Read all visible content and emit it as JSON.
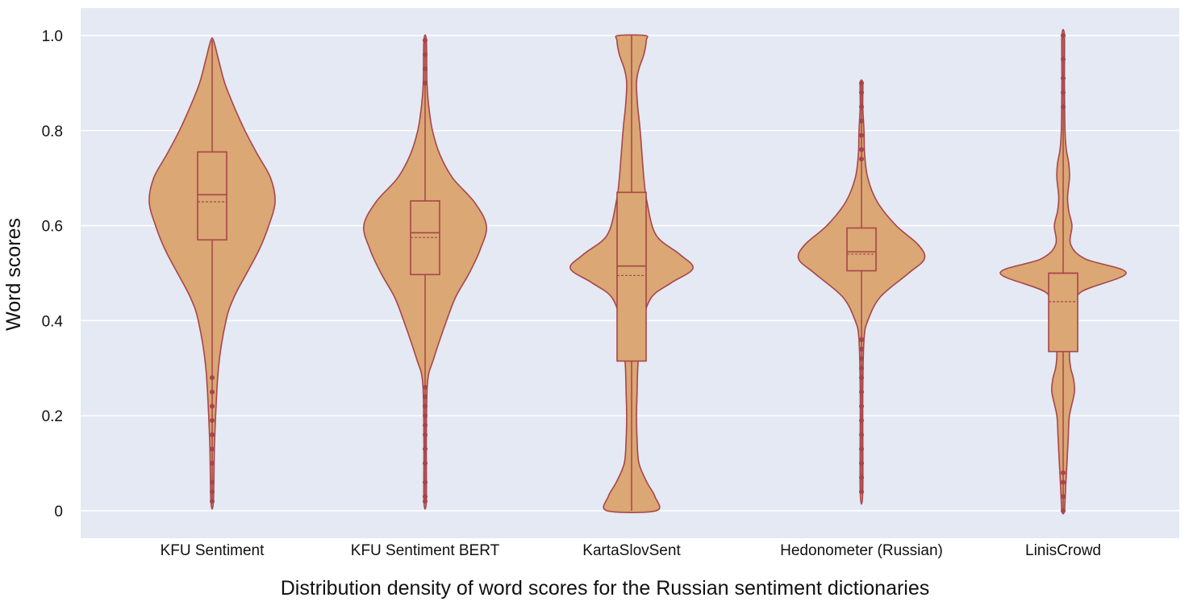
{
  "chart_data": {
    "type": "violin",
    "title": "",
    "xlabel": "Distribution density of word scores for the Russian sentiment dictionaries",
    "ylabel": "Word scores",
    "ylim": [
      0,
      1.0
    ],
    "yticks": [
      {
        "value": 0,
        "label": "0"
      },
      {
        "value": 0.2,
        "label": "0.2"
      },
      {
        "value": 0.4,
        "label": "0.4"
      },
      {
        "value": 0.6,
        "label": "0.6"
      },
      {
        "value": 0.8,
        "label": "0.8"
      },
      {
        "value": 1.0,
        "label": "1.0"
      }
    ],
    "grid": true,
    "categories": [
      "KFU Sentiment",
      "KFU Sentiment BERT",
      "KartaSlovSent",
      "Hedonometer (Russian)",
      "LinisCrowd"
    ],
    "series": [
      {
        "category": "KFU Sentiment",
        "box": {
          "q1": 0.57,
          "median": 0.665,
          "mean": 0.65,
          "q3": 0.755
        },
        "range": [
          0.02,
          0.99
        ],
        "outliers": [
          0.02,
          0.04,
          0.06,
          0.1,
          0.13,
          0.16,
          0.19,
          0.22,
          0.25,
          0.28
        ],
        "density": [
          [
            0.02,
            0.02
          ],
          [
            0.15,
            0.04
          ],
          [
            0.3,
            0.1
          ],
          [
            0.4,
            0.22
          ],
          [
            0.45,
            0.35
          ],
          [
            0.5,
            0.55
          ],
          [
            0.55,
            0.75
          ],
          [
            0.6,
            0.9
          ],
          [
            0.65,
            1.0
          ],
          [
            0.7,
            0.93
          ],
          [
            0.75,
            0.72
          ],
          [
            0.8,
            0.52
          ],
          [
            0.85,
            0.35
          ],
          [
            0.9,
            0.2
          ],
          [
            0.95,
            0.1
          ],
          [
            0.99,
            0.02
          ]
        ]
      },
      {
        "category": "KFU Sentiment BERT",
        "box": {
          "q1": 0.497,
          "median": 0.585,
          "mean": 0.575,
          "q3": 0.652
        },
        "range": [
          0.02,
          0.99
        ],
        "outliers": [
          0.02,
          0.03,
          0.06,
          0.1,
          0.13,
          0.16,
          0.18,
          0.2,
          0.22,
          0.24,
          0.26,
          0.9,
          0.93,
          0.96,
          0.99
        ],
        "density": [
          [
            0.02,
            0.02
          ],
          [
            0.15,
            0.02
          ],
          [
            0.27,
            0.04
          ],
          [
            0.32,
            0.14
          ],
          [
            0.4,
            0.35
          ],
          [
            0.45,
            0.5
          ],
          [
            0.5,
            0.72
          ],
          [
            0.55,
            0.9
          ],
          [
            0.6,
            1.0
          ],
          [
            0.65,
            0.8
          ],
          [
            0.7,
            0.45
          ],
          [
            0.75,
            0.24
          ],
          [
            0.8,
            0.12
          ],
          [
            0.85,
            0.06
          ],
          [
            0.9,
            0.03
          ],
          [
            0.99,
            0.02
          ]
        ]
      },
      {
        "category": "KartaSlovSent",
        "box": {
          "q1": 0.315,
          "median": 0.515,
          "mean": 0.495,
          "q3": 0.67
        },
        "range": [
          0.0,
          1.0
        ],
        "outliers": [],
        "density": [
          [
            0.0,
            0.4
          ],
          [
            0.03,
            0.38
          ],
          [
            0.06,
            0.25
          ],
          [
            0.1,
            0.12
          ],
          [
            0.15,
            0.09
          ],
          [
            0.2,
            0.08
          ],
          [
            0.25,
            0.09
          ],
          [
            0.3,
            0.1
          ],
          [
            0.35,
            0.13
          ],
          [
            0.4,
            0.18
          ],
          [
            0.45,
            0.33
          ],
          [
            0.48,
            0.65
          ],
          [
            0.51,
            1.0
          ],
          [
            0.54,
            0.78
          ],
          [
            0.58,
            0.4
          ],
          [
            0.65,
            0.25
          ],
          [
            0.7,
            0.2
          ],
          [
            0.8,
            0.14
          ],
          [
            0.85,
            0.1
          ],
          [
            0.9,
            0.08
          ],
          [
            0.93,
            0.12
          ],
          [
            0.96,
            0.2
          ],
          [
            0.99,
            0.24
          ],
          [
            1.0,
            0.22
          ]
        ]
      },
      {
        "category": "Hedonometer (Russian)",
        "box": {
          "q1": 0.505,
          "median": 0.545,
          "mean": 0.54,
          "q3": 0.595
        },
        "range": [
          0.04,
          0.9
        ],
        "outliers": [
          0.04,
          0.07,
          0.1,
          0.13,
          0.16,
          0.19,
          0.22,
          0.25,
          0.28,
          0.3,
          0.32,
          0.34,
          0.36,
          0.74,
          0.76,
          0.79,
          0.82,
          0.85,
          0.88,
          0.9
        ],
        "density": [
          [
            0.04,
            0.02
          ],
          [
            0.25,
            0.02
          ],
          [
            0.36,
            0.04
          ],
          [
            0.4,
            0.1
          ],
          [
            0.45,
            0.3
          ],
          [
            0.5,
            0.75
          ],
          [
            0.53,
            1.0
          ],
          [
            0.56,
            0.9
          ],
          [
            0.6,
            0.55
          ],
          [
            0.65,
            0.25
          ],
          [
            0.7,
            0.1
          ],
          [
            0.75,
            0.05
          ],
          [
            0.8,
            0.04
          ],
          [
            0.85,
            0.02
          ],
          [
            0.9,
            0.02
          ]
        ]
      },
      {
        "category": "LinisCrowd",
        "box": {
          "q1": 0.335,
          "median": 0.5,
          "mean": 0.44,
          "q3": 0.5
        },
        "range": [
          0.0,
          1.0
        ],
        "outliers": [
          0.0,
          0.03,
          0.06,
          0.08,
          0.85,
          0.88,
          0.91,
          0.95,
          1.0
        ],
        "density": [
          [
            0.0,
            0.02
          ],
          [
            0.05,
            0.04
          ],
          [
            0.1,
            0.06
          ],
          [
            0.15,
            0.08
          ],
          [
            0.2,
            0.1
          ],
          [
            0.25,
            0.18
          ],
          [
            0.28,
            0.16
          ],
          [
            0.3,
            0.12
          ],
          [
            0.33,
            0.1
          ],
          [
            0.38,
            0.13
          ],
          [
            0.42,
            0.17
          ],
          [
            0.46,
            0.28
          ],
          [
            0.5,
            1.0
          ],
          [
            0.53,
            0.35
          ],
          [
            0.56,
            0.12
          ],
          [
            0.6,
            0.14
          ],
          [
            0.63,
            0.09
          ],
          [
            0.66,
            0.07
          ],
          [
            0.7,
            0.1
          ],
          [
            0.73,
            0.09
          ],
          [
            0.76,
            0.05
          ],
          [
            0.8,
            0.03
          ],
          [
            0.9,
            0.02
          ],
          [
            1.0,
            0.02
          ]
        ]
      }
    ]
  },
  "colors": {
    "plot_bg": "#e4e9f4",
    "grid": "#ffffff",
    "violin_fill": "#dba774",
    "violin_stroke": "#a8454a",
    "outlier": "#a8454a"
  }
}
